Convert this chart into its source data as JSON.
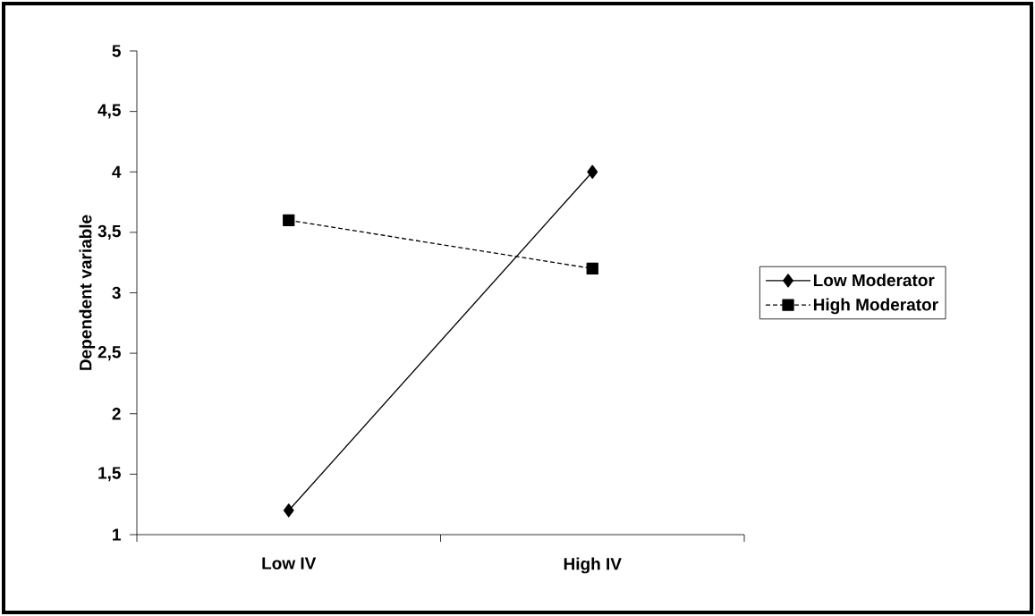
{
  "chart_data": {
    "type": "line",
    "ylabel": "Dependent variable",
    "categories": [
      "Low IV",
      "High IV"
    ],
    "series": [
      {
        "name": "Low Moderator",
        "color": "#000000",
        "values": [
          1.2,
          4.0
        ],
        "marker": "diamond",
        "line_style": "solid"
      },
      {
        "name": "High Moderator",
        "color": "#000000",
        "values": [
          3.6,
          3.2
        ],
        "marker": "square",
        "line_style": "dashed"
      }
    ],
    "ylim": [
      1,
      5
    ],
    "yticks": [
      1,
      {
        "value": 1.5,
        "label": "1,5"
      },
      2,
      {
        "value": 2.5,
        "label": "2,5"
      },
      3,
      {
        "value": 3.5,
        "label": "3,5"
      },
      4,
      {
        "value": 4.5,
        "label": "4,5"
      },
      5
    ],
    "grid": false,
    "legend": "right"
  }
}
